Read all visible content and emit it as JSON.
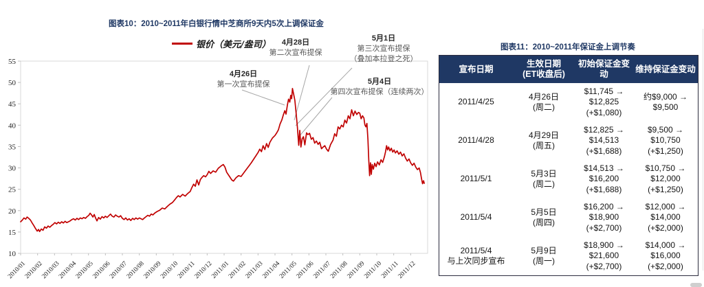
{
  "left_panel": {
    "title": "图表10：2010~2011年白银行情中芝商所9天内5次上调保证金",
    "legend_label": "银价（美元/盎司）",
    "annotations": [
      {
        "date": "4月26日",
        "line1": "第一次宣布提保"
      },
      {
        "date": "4月28日",
        "line1": "第二次宣布提保"
      },
      {
        "date": "5月1日",
        "line1": "第三次宣布提保",
        "line2": "（叠加本拉登之死）"
      },
      {
        "date": "5月4日",
        "line1": "第四次宣布提保（连续两次）"
      }
    ]
  },
  "chart_data": {
    "type": "line",
    "title": "图表10：2010~2011年白银行情中芝商所9天内5次上调保证金",
    "xlabel": "",
    "ylabel": "",
    "xlim": [
      0,
      24
    ],
    "ylim": [
      10,
      55
    ],
    "grid": false,
    "legend_position": "top",
    "y_ticks": [
      55,
      50,
      45,
      40,
      35,
      30,
      25,
      20,
      15,
      10
    ],
    "x_labels": [
      "2010/01",
      "2010/02",
      "2010/03",
      "2010/04",
      "2010/05",
      "2010/06",
      "2010/07",
      "2010/08",
      "2010/09",
      "2010/10",
      "2010/11",
      "2010/12",
      "2011/01",
      "2011/02",
      "2011/03",
      "2011/04",
      "2011/05",
      "2011/06",
      "2011/07",
      "2011/08",
      "2011/09",
      "2011/10",
      "2011/11",
      "2011/12"
    ],
    "axis_color": "#d9d9d9",
    "tick_color": "#bfbfbf",
    "leader_color": "#a6a6a6",
    "leader_lines": [
      [
        352,
        131,
        414,
        153
      ],
      [
        450,
        95,
        428,
        175
      ],
      [
        512,
        99,
        430,
        183
      ],
      [
        483,
        142,
        434,
        200
      ]
    ],
    "series": [
      {
        "name": "银价（美元/盎司）",
        "color": "#c00000",
        "points": [
          [
            0,
            17.4
          ],
          [
            0.1,
            17.8
          ],
          [
            0.2,
            18.3
          ],
          [
            0.3,
            18.0
          ],
          [
            0.38,
            18.5
          ],
          [
            0.48,
            18.2
          ],
          [
            0.58,
            17.8
          ],
          [
            0.68,
            17.1
          ],
          [
            0.78,
            16.5
          ],
          [
            0.88,
            15.8
          ],
          [
            0.98,
            15.2
          ],
          [
            1.06,
            15.6
          ],
          [
            1.12,
            15.1
          ],
          [
            1.22,
            15.7
          ],
          [
            1.32,
            15.4
          ],
          [
            1.42,
            16.2
          ],
          [
            1.52,
            15.9
          ],
          [
            1.62,
            16.4
          ],
          [
            1.72,
            16.1
          ],
          [
            1.82,
            16.5
          ],
          [
            1.92,
            16.8
          ],
          [
            2.02,
            17.2
          ],
          [
            2.12,
            16.9
          ],
          [
            2.22,
            17.3
          ],
          [
            2.32,
            17.0
          ],
          [
            2.42,
            17.4
          ],
          [
            2.52,
            17.1
          ],
          [
            2.62,
            17.5
          ],
          [
            2.72,
            17.2
          ],
          [
            2.82,
            17.4
          ],
          [
            2.92,
            17.6
          ],
          [
            3.02,
            17.9
          ],
          [
            3.12,
            18.1
          ],
          [
            3.22,
            17.8
          ],
          [
            3.32,
            18.2
          ],
          [
            3.42,
            17.9
          ],
          [
            3.52,
            18.3
          ],
          [
            3.62,
            18.1
          ],
          [
            3.72,
            18.4
          ],
          [
            3.82,
            18.2
          ],
          [
            3.92,
            18.6
          ],
          [
            4.02,
            18.9
          ],
          [
            4.1,
            19.4
          ],
          [
            4.18,
            19.0
          ],
          [
            4.26,
            18.5
          ],
          [
            4.34,
            19.1
          ],
          [
            4.42,
            18.3
          ],
          [
            4.5,
            17.6
          ],
          [
            4.6,
            18.4
          ],
          [
            4.7,
            18.0
          ],
          [
            4.8,
            18.6
          ],
          [
            4.9,
            18.3
          ],
          [
            5.0,
            18.7
          ],
          [
            5.1,
            18.4
          ],
          [
            5.2,
            18.8
          ],
          [
            5.3,
            19.2
          ],
          [
            5.4,
            18.7
          ],
          [
            5.5,
            18.5
          ],
          [
            5.6,
            19.0
          ],
          [
            5.7,
            18.7
          ],
          [
            5.8,
            18.5
          ],
          [
            5.9,
            18.8
          ],
          [
            6.0,
            18.2
          ],
          [
            6.1,
            17.9
          ],
          [
            6.2,
            18.3
          ],
          [
            6.3,
            17.8
          ],
          [
            6.4,
            18.1
          ],
          [
            6.5,
            17.7
          ],
          [
            6.6,
            18.2
          ],
          [
            6.7,
            17.9
          ],
          [
            6.8,
            18.3
          ],
          [
            6.9,
            18.0
          ],
          [
            7.0,
            18.3
          ],
          [
            7.1,
            18.1
          ],
          [
            7.2,
            17.9
          ],
          [
            7.3,
            18.3
          ],
          [
            7.4,
            18.6
          ],
          [
            7.5,
            18.9
          ],
          [
            7.6,
            18.7
          ],
          [
            7.7,
            19.2
          ],
          [
            7.8,
            19.0
          ],
          [
            7.9,
            19.4
          ],
          [
            8.05,
            19.8
          ],
          [
            8.2,
            20.1
          ],
          [
            8.35,
            20.6
          ],
          [
            8.5,
            20.4
          ],
          [
            8.65,
            21.0
          ],
          [
            8.8,
            21.5
          ],
          [
            8.95,
            21.9
          ],
          [
            9.1,
            22.6
          ],
          [
            9.2,
            23.1
          ],
          [
            9.3,
            23.5
          ],
          [
            9.4,
            23.2
          ],
          [
            9.55,
            23.8
          ],
          [
            9.7,
            23.4
          ],
          [
            9.85,
            24.0
          ],
          [
            10.0,
            24.5
          ],
          [
            10.1,
            25.4
          ],
          [
            10.2,
            26.2
          ],
          [
            10.3,
            25.7
          ],
          [
            10.4,
            27.2
          ],
          [
            10.5,
            26.0
          ],
          [
            10.6,
            27.3
          ],
          [
            10.7,
            27.8
          ],
          [
            10.8,
            28.2
          ],
          [
            10.9,
            27.9
          ],
          [
            11.0,
            28.4
          ],
          [
            11.1,
            29.2
          ],
          [
            11.2,
            28.7
          ],
          [
            11.35,
            29.3
          ],
          [
            11.5,
            29.0
          ],
          [
            11.65,
            29.9
          ],
          [
            11.8,
            30.4
          ],
          [
            11.95,
            30.8
          ],
          [
            12.05,
            30.2
          ],
          [
            12.15,
            29.0
          ],
          [
            12.3,
            28.1
          ],
          [
            12.45,
            27.2
          ],
          [
            12.55,
            26.9
          ],
          [
            12.7,
            27.7
          ],
          [
            12.85,
            28.2
          ],
          [
            13.0,
            28.0
          ],
          [
            13.15,
            28.8
          ],
          [
            13.3,
            29.6
          ],
          [
            13.45,
            30.4
          ],
          [
            13.6,
            31.2
          ],
          [
            13.75,
            32.1
          ],
          [
            13.9,
            33.0
          ],
          [
            14.0,
            33.6
          ],
          [
            14.1,
            34.4
          ],
          [
            14.2,
            33.8
          ],
          [
            14.3,
            35.2
          ],
          [
            14.4,
            34.3
          ],
          [
            14.5,
            35.7
          ],
          [
            14.6,
            34.8
          ],
          [
            14.7,
            36.0
          ],
          [
            14.85,
            37.0
          ],
          [
            15.0,
            37.6
          ],
          [
            15.1,
            38.2
          ],
          [
            15.2,
            38.9
          ],
          [
            15.3,
            40.3
          ],
          [
            15.4,
            41.2
          ],
          [
            15.5,
            42.5
          ],
          [
            15.58,
            43.4
          ],
          [
            15.65,
            42.6
          ],
          [
            15.73,
            44.7
          ],
          [
            15.8,
            46.1
          ],
          [
            15.87,
            45.4
          ],
          [
            15.93,
            47.0
          ],
          [
            15.98,
            46.2
          ],
          [
            16.03,
            48.6
          ],
          [
            16.1,
            47.3
          ],
          [
            16.17,
            45.8
          ],
          [
            16.25,
            42.7
          ],
          [
            16.32,
            39.5
          ],
          [
            16.4,
            35.3
          ],
          [
            16.46,
            38.8
          ],
          [
            16.53,
            34.9
          ],
          [
            16.6,
            36.8
          ],
          [
            16.68,
            37.3
          ],
          [
            16.76,
            35.4
          ],
          [
            16.86,
            38.2
          ],
          [
            16.94,
            37.8
          ],
          [
            17.04,
            38.1
          ],
          [
            17.14,
            36.7
          ],
          [
            17.24,
            37.1
          ],
          [
            17.34,
            35.8
          ],
          [
            17.44,
            36.3
          ],
          [
            17.54,
            35.5
          ],
          [
            17.64,
            36.0
          ],
          [
            17.74,
            34.5
          ],
          [
            17.84,
            34.9
          ],
          [
            17.94,
            35.2
          ],
          [
            18.04,
            34.4
          ],
          [
            18.14,
            33.9
          ],
          [
            18.28,
            35.5
          ],
          [
            18.42,
            36.5
          ],
          [
            18.52,
            38.0
          ],
          [
            18.62,
            37.4
          ],
          [
            18.72,
            39.6
          ],
          [
            18.82,
            39.1
          ],
          [
            18.92,
            40.0
          ],
          [
            19.02,
            39.6
          ],
          [
            19.12,
            41.2
          ],
          [
            19.22,
            40.5
          ],
          [
            19.32,
            42.2
          ],
          [
            19.42,
            41.5
          ],
          [
            19.52,
            43.6
          ],
          [
            19.62,
            42.2
          ],
          [
            19.72,
            43.3
          ],
          [
            19.82,
            42.5
          ],
          [
            19.92,
            43.0
          ],
          [
            20.0,
            42.8
          ],
          [
            20.08,
            41.5
          ],
          [
            20.16,
            42.2
          ],
          [
            20.24,
            41.7
          ],
          [
            20.3,
            40.1
          ],
          [
            20.36,
            39.6
          ],
          [
            20.42,
            40.4
          ],
          [
            20.48,
            36.6
          ],
          [
            20.53,
            31.8
          ],
          [
            20.58,
            28.2
          ],
          [
            20.63,
            31.2
          ],
          [
            20.68,
            28.5
          ],
          [
            20.73,
            30.8
          ],
          [
            20.8,
            29.7
          ],
          [
            20.88,
            31.1
          ],
          [
            20.96,
            30.3
          ],
          [
            21.05,
            31.4
          ],
          [
            21.15,
            30.7
          ],
          [
            21.25,
            31.9
          ],
          [
            21.35,
            31.3
          ],
          [
            21.45,
            32.6
          ],
          [
            21.52,
            33.8
          ],
          [
            21.58,
            35.2
          ],
          [
            21.64,
            34.2
          ],
          [
            21.7,
            34.9
          ],
          [
            21.78,
            34.0
          ],
          [
            21.86,
            34.6
          ],
          [
            21.94,
            33.7
          ],
          [
            22.02,
            34.2
          ],
          [
            22.1,
            33.5
          ],
          [
            22.2,
            34.0
          ],
          [
            22.3,
            33.2
          ],
          [
            22.4,
            33.7
          ],
          [
            22.5,
            32.8
          ],
          [
            22.6,
            33.3
          ],
          [
            22.7,
            32.3
          ],
          [
            22.8,
            31.6
          ],
          [
            22.9,
            32.1
          ],
          [
            23.0,
            31.2
          ],
          [
            23.1,
            30.6
          ],
          [
            23.2,
            31.1
          ],
          [
            23.3,
            30.2
          ],
          [
            23.4,
            29.6
          ],
          [
            23.5,
            30.0
          ],
          [
            23.58,
            28.9
          ],
          [
            23.64,
            27.5
          ],
          [
            23.7,
            26.3
          ],
          [
            23.76,
            27.0
          ],
          [
            23.8,
            26.4
          ]
        ]
      }
    ]
  },
  "right_panel": {
    "title": "图表11：2010~2011年保证金上调节奏",
    "table": {
      "header_bg": "#1f3864",
      "headers": [
        [
          "宣布日期"
        ],
        [
          "生效日期",
          "(ET收盘后)"
        ],
        [
          "初始保证金变动"
        ],
        [
          "维持保证金变动"
        ]
      ],
      "rows": [
        [
          [
            "2011/4/25"
          ],
          [
            "4月26日",
            "(周二)"
          ],
          [
            "$11,745 →",
            "$12,825",
            "(+$1,080)"
          ],
          [
            "约$9,000 →",
            "$9,500"
          ]
        ],
        [
          [
            "2011/4/28"
          ],
          [
            "4月29日",
            "(周五)"
          ],
          [
            "$12,825 →",
            "$14,513",
            "(+$1,688)"
          ],
          [
            "$9,500 →",
            "$10,750",
            "(+$1,250)"
          ]
        ],
        [
          [
            "2011/5/1"
          ],
          [
            "5月3日",
            "(周二)"
          ],
          [
            "$14,513 →",
            "$16,200",
            "(+$1,688)"
          ],
          [
            "$10,750 →",
            "$12,000",
            "(+$1,250)"
          ]
        ],
        [
          [
            "2011/5/4"
          ],
          [
            "5月5日",
            "(周四)"
          ],
          [
            "$16,200 →",
            "$18,900",
            "(+$2,700)"
          ],
          [
            "$12,000 →",
            "$14,000",
            "(+$2,000)"
          ]
        ],
        [
          [
            "2011/5/4",
            "与上次同步宣布"
          ],
          [
            "5月9日",
            "(周一)"
          ],
          [
            "$18,900 →",
            "$21,600",
            "(+$2,700)"
          ],
          [
            "$14,000 →",
            "$16,000",
            "(+$2,000)"
          ]
        ]
      ]
    }
  },
  "colors": {
    "accent_navy": "#1f3864",
    "line_red": "#c00000",
    "leader_gray": "#a6a6a6"
  }
}
